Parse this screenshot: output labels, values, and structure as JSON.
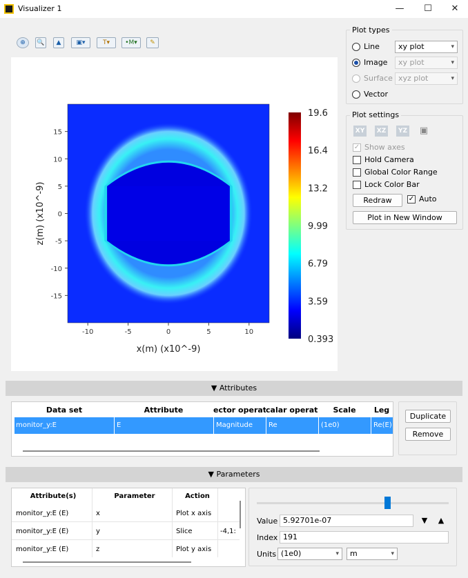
{
  "window": {
    "title": "Visualizer 1",
    "minimize": "—",
    "maximize": "☐",
    "close": "✕"
  },
  "toolbar": {
    "items": [
      "zoom-icon",
      "zoom-box-icon",
      "mountain-icon",
      "export-icon",
      "text-icon",
      "marker-icon",
      "pen-icon"
    ]
  },
  "chart_data": {
    "type": "heatmap",
    "xlabel": "x(m) (x10^-9)",
    "ylabel": "z(m) (x10^-9)",
    "x_ticks": [
      "-10",
      "-5",
      "0",
      "5",
      "10"
    ],
    "y_ticks": [
      "15",
      "10",
      "5",
      "0",
      "-5",
      "-10",
      "-15"
    ],
    "xlim": [
      -12.5,
      12.5
    ],
    "ylim": [
      -20,
      20
    ],
    "colorbar_ticks": [
      "19.6",
      "16.4",
      "13.2",
      "9.99",
      "6.79",
      "3.59",
      "0.393"
    ],
    "clim": [
      0.393,
      19.6
    ],
    "colormap": [
      "#00007f",
      "#0000ff",
      "#007fff",
      "#00ffff",
      "#7fff7f",
      "#ffff00",
      "#ff7f00",
      "#ff0000",
      "#7f0000"
    ]
  },
  "plot_types": {
    "title": "Plot types",
    "options": [
      {
        "label": "Line",
        "selected": false,
        "enabled": true,
        "combo": "xy plot"
      },
      {
        "label": "Image",
        "selected": true,
        "enabled": true,
        "combo": "xy plot"
      },
      {
        "label": "Surface",
        "selected": false,
        "enabled": false,
        "combo": "xyz plot"
      },
      {
        "label": "Vector",
        "selected": false,
        "enabled": true
      }
    ]
  },
  "plot_settings": {
    "title": "Plot settings",
    "view_buttons": [
      "XY",
      "XZ",
      "YZ"
    ],
    "show_axes": "Show axes",
    "hold_camera": "Hold Camera",
    "global_color_range": "Global Color Range",
    "lock_color_bar": "Lock Color Bar",
    "redraw": "Redraw",
    "auto": "Auto",
    "plot_new_window": "Plot in New Window"
  },
  "attributes": {
    "header": "Attributes",
    "columns": [
      "Data set",
      "Attribute",
      "ector operatic",
      "calar operatic",
      "Scale",
      "Leg"
    ],
    "rows": [
      [
        "monitor_y:E",
        "E",
        "Magnitude",
        "Re",
        "(1e0)",
        "Re(E)"
      ]
    ],
    "duplicate": "Duplicate",
    "remove": "Remove"
  },
  "parameters": {
    "header": "Parameters",
    "columns": [
      "Attribute(s)",
      "Parameter",
      "Action"
    ],
    "rows": [
      [
        "monitor_y:E (E)",
        "x",
        "Plot x axis",
        ""
      ],
      [
        "monitor_y:E (E)",
        "y",
        "Slice",
        "-4,1:"
      ],
      [
        "monitor_y:E (E)",
        "z",
        "Plot y axis",
        ""
      ]
    ],
    "slider_fraction": 0.68,
    "value_label": "Value",
    "value": "5.92701e-07",
    "index_label": "Index",
    "index": "191",
    "units_label": "Units",
    "units_scale": "(1e0)",
    "units": "m"
  }
}
